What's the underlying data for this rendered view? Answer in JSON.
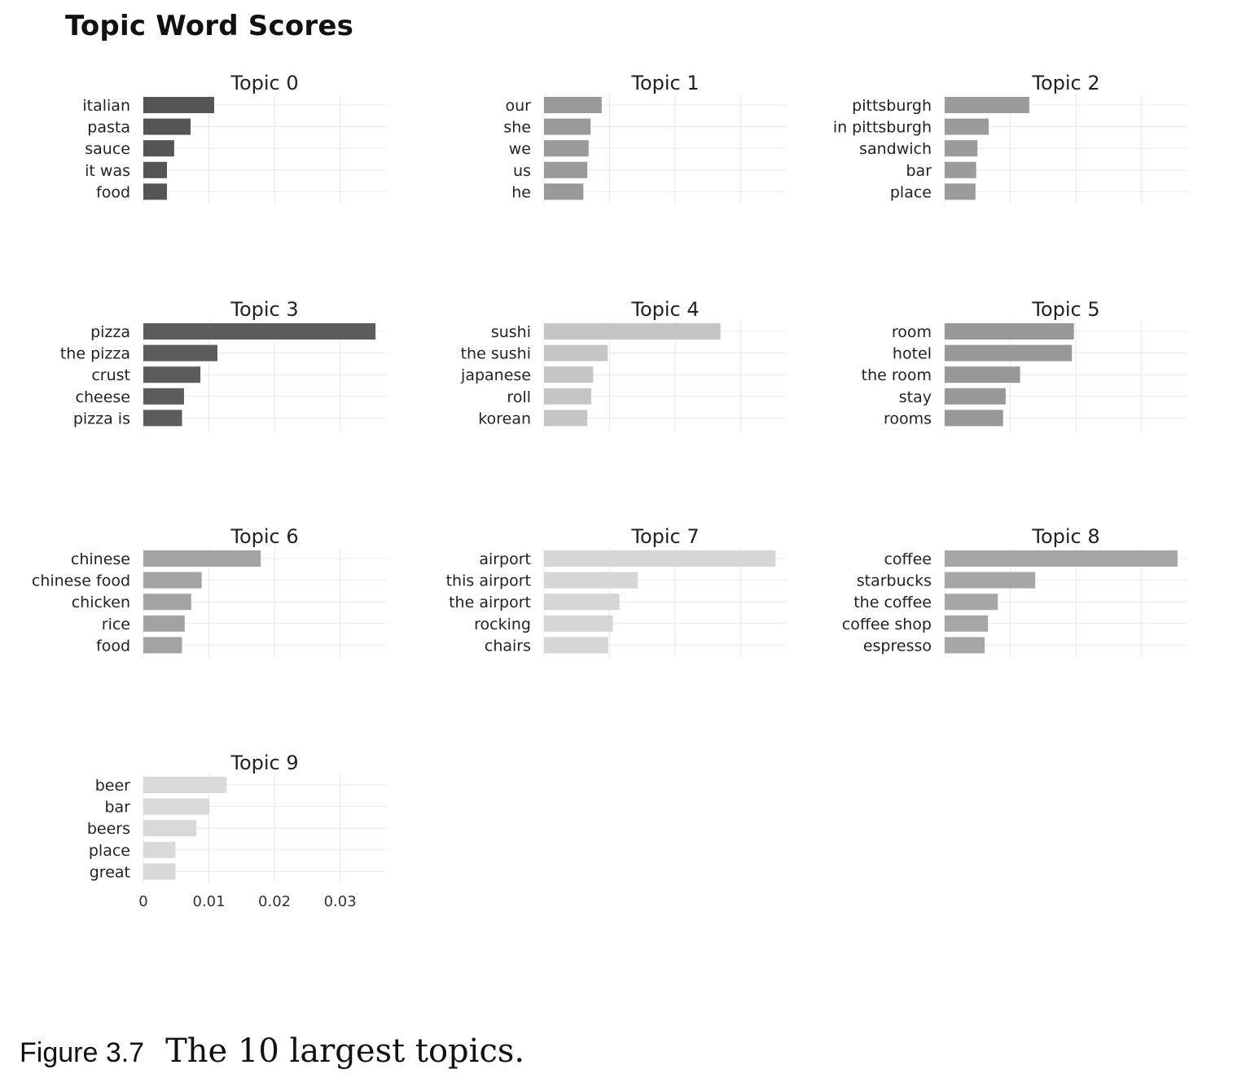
{
  "title": "Topic Word Scores",
  "caption": {
    "label": "Figure 3.7",
    "text": "The 10 largest topics."
  },
  "chart_data": {
    "type": "bar",
    "orientation": "horizontal",
    "title": "Topic Word Scores",
    "xlim": [
      0,
      0.037
    ],
    "x_ticks": [
      0,
      0.01,
      0.02,
      0.03
    ],
    "x_tick_labels": [
      "0",
      "0.01",
      "0.02",
      "0.03"
    ],
    "grid": true,
    "shared_x_axis": true,
    "panels": [
      {
        "name": "Topic 0",
        "color": "#555555",
        "categories": [
          "italian",
          "pasta",
          "sauce",
          "it was",
          "food"
        ],
        "values": [
          0.0108,
          0.0072,
          0.0047,
          0.0036,
          0.0036
        ]
      },
      {
        "name": "Topic 1",
        "color": "#999999",
        "categories": [
          "our",
          "she",
          "we",
          "us",
          "he"
        ],
        "values": [
          0.0088,
          0.0071,
          0.0068,
          0.0066,
          0.006
        ]
      },
      {
        "name": "Topic 2",
        "color": "#9b9b9b",
        "categories": [
          "pittsburgh",
          "in pittsburgh",
          "sandwich",
          "bar",
          "place"
        ],
        "values": [
          0.0129,
          0.0067,
          0.005,
          0.0048,
          0.0047
        ]
      },
      {
        "name": "Topic 3",
        "color": "#5c5c5c",
        "categories": [
          "pizza",
          "the pizza",
          "crust",
          "cheese",
          "pizza is"
        ],
        "values": [
          0.0354,
          0.0113,
          0.0087,
          0.0062,
          0.0059
        ]
      },
      {
        "name": "Topic 4",
        "color": "#c5c5c5",
        "categories": [
          "sushi",
          "the sushi",
          "japanese",
          "roll",
          "korean"
        ],
        "values": [
          0.0269,
          0.0097,
          0.0075,
          0.0072,
          0.0066
        ]
      },
      {
        "name": "Topic 5",
        "color": "#989898",
        "categories": [
          "room",
          "hotel",
          "the room",
          "stay",
          "rooms"
        ],
        "values": [
          0.0197,
          0.0194,
          0.0115,
          0.0093,
          0.0089
        ]
      },
      {
        "name": "Topic 6",
        "color": "#a3a3a3",
        "categories": [
          "chinese",
          "chinese food",
          "chicken",
          "rice",
          "food"
        ],
        "values": [
          0.0179,
          0.0089,
          0.0073,
          0.0063,
          0.0059
        ]
      },
      {
        "name": "Topic 7",
        "color": "#d6d6d6",
        "categories": [
          "airport",
          "this airport",
          "the airport",
          "rocking",
          "chairs"
        ],
        "values": [
          0.0353,
          0.0143,
          0.0115,
          0.0105,
          0.0098
        ]
      },
      {
        "name": "Topic 8",
        "color": "#a6a6a6",
        "categories": [
          "coffee",
          "starbucks",
          "the coffee",
          "coffee shop",
          "espresso"
        ],
        "values": [
          0.0355,
          0.0138,
          0.0081,
          0.0066,
          0.0061
        ]
      },
      {
        "name": "Topic 9",
        "color": "#d9d9d9",
        "categories": [
          "beer",
          "bar",
          "beers",
          "place",
          "great"
        ],
        "values": [
          0.0127,
          0.0101,
          0.0081,
          0.0049,
          0.0049
        ]
      }
    ]
  }
}
